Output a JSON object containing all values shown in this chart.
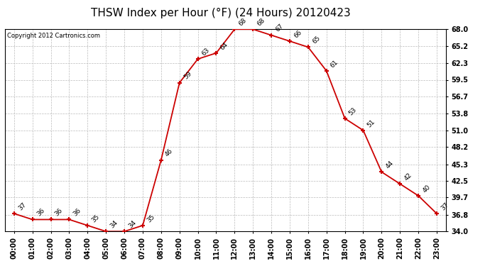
{
  "title": "THSW Index per Hour (°F) (24 Hours) 20120423",
  "copyright": "Copyright 2012 Cartronics.com",
  "hours": [
    0,
    1,
    2,
    3,
    4,
    5,
    6,
    7,
    8,
    9,
    10,
    11,
    12,
    13,
    14,
    15,
    16,
    17,
    18,
    19,
    20,
    21,
    22,
    23
  ],
  "values": [
    37,
    36,
    36,
    36,
    35,
    34,
    34,
    35,
    46,
    59,
    63,
    64,
    68,
    68,
    67,
    66,
    65,
    61,
    53,
    51,
    44,
    42,
    40,
    37
  ],
  "xlabels": [
    "00:00",
    "01:00",
    "02:00",
    "03:00",
    "04:00",
    "05:00",
    "06:00",
    "07:00",
    "08:00",
    "09:00",
    "10:00",
    "11:00",
    "12:00",
    "13:00",
    "14:00",
    "15:00",
    "16:00",
    "17:00",
    "18:00",
    "19:00",
    "20:00",
    "21:00",
    "22:00",
    "23:00"
  ],
  "ylim": [
    34.0,
    68.0
  ],
  "yticks": [
    34.0,
    36.8,
    39.7,
    42.5,
    45.3,
    48.2,
    51.0,
    53.8,
    56.7,
    59.5,
    62.3,
    65.2,
    68.0
  ],
  "line_color": "#cc0000",
  "marker_color": "#cc0000",
  "bg_color": "#ffffff",
  "grid_color": "#bbbbbb",
  "title_fontsize": 11,
  "label_fontsize": 7,
  "annot_fontsize": 6.5,
  "copyright_fontsize": 6
}
